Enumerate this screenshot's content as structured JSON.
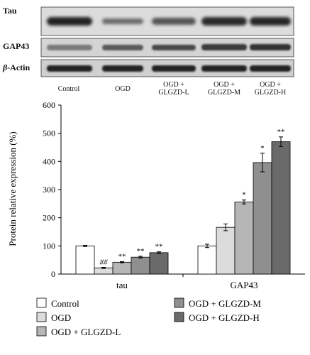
{
  "blot": {
    "rows": [
      {
        "label": "Tau",
        "italic_prefix": ""
      },
      {
        "label": "GAP43",
        "italic_prefix": ""
      },
      {
        "label": "-Actin",
        "italic_prefix": "β"
      }
    ],
    "lanes": [
      {
        "line1": "Control",
        "line2": ""
      },
      {
        "line1": "OGD",
        "line2": ""
      },
      {
        "line1": "OGD +",
        "line2": "GLGZD-L"
      },
      {
        "line1": "OGD +",
        "line2": "GLGZD-M"
      },
      {
        "line1": "OGD +",
        "line2": "GLGZD-H"
      }
    ]
  },
  "chart_data": {
    "type": "bar",
    "ylabel": "Protein relative expression (%)",
    "ylim": [
      0,
      600
    ],
    "yticks": [
      "0",
      "100",
      "200",
      "300",
      "400",
      "500",
      "600"
    ],
    "categories": [
      "tau",
      "GAP43"
    ],
    "grid": false,
    "legend_position": "bottom",
    "series": [
      {
        "name": "Control",
        "color": "#ffffff",
        "values": [
          100,
          100
        ],
        "errors": [
          2,
          6
        ],
        "annotations": [
          "",
          ""
        ]
      },
      {
        "name": "OGD",
        "color": "#dcdcdc",
        "values": [
          22,
          166
        ],
        "errors": [
          2,
          12
        ],
        "annotations": [
          "##",
          ""
        ]
      },
      {
        "name": "OGD + GLGZD-L",
        "color": "#b6b6b6",
        "values": [
          42,
          256
        ],
        "errors": [
          2,
          7
        ],
        "annotations": [
          "**",
          "*"
        ]
      },
      {
        "name": "OGD + GLGZD-M",
        "color": "#8f8f8f",
        "values": [
          60,
          396
        ],
        "errors": [
          3,
          33
        ],
        "annotations": [
          "**",
          "*"
        ]
      },
      {
        "name": "OGD + GLGZD-H",
        "color": "#6a6a6a",
        "values": [
          76,
          470
        ],
        "errors": [
          3,
          17
        ],
        "annotations": [
          "**",
          "**"
        ]
      }
    ],
    "legend_layout": [
      [
        0,
        1,
        2
      ],
      [
        3,
        4
      ]
    ]
  }
}
